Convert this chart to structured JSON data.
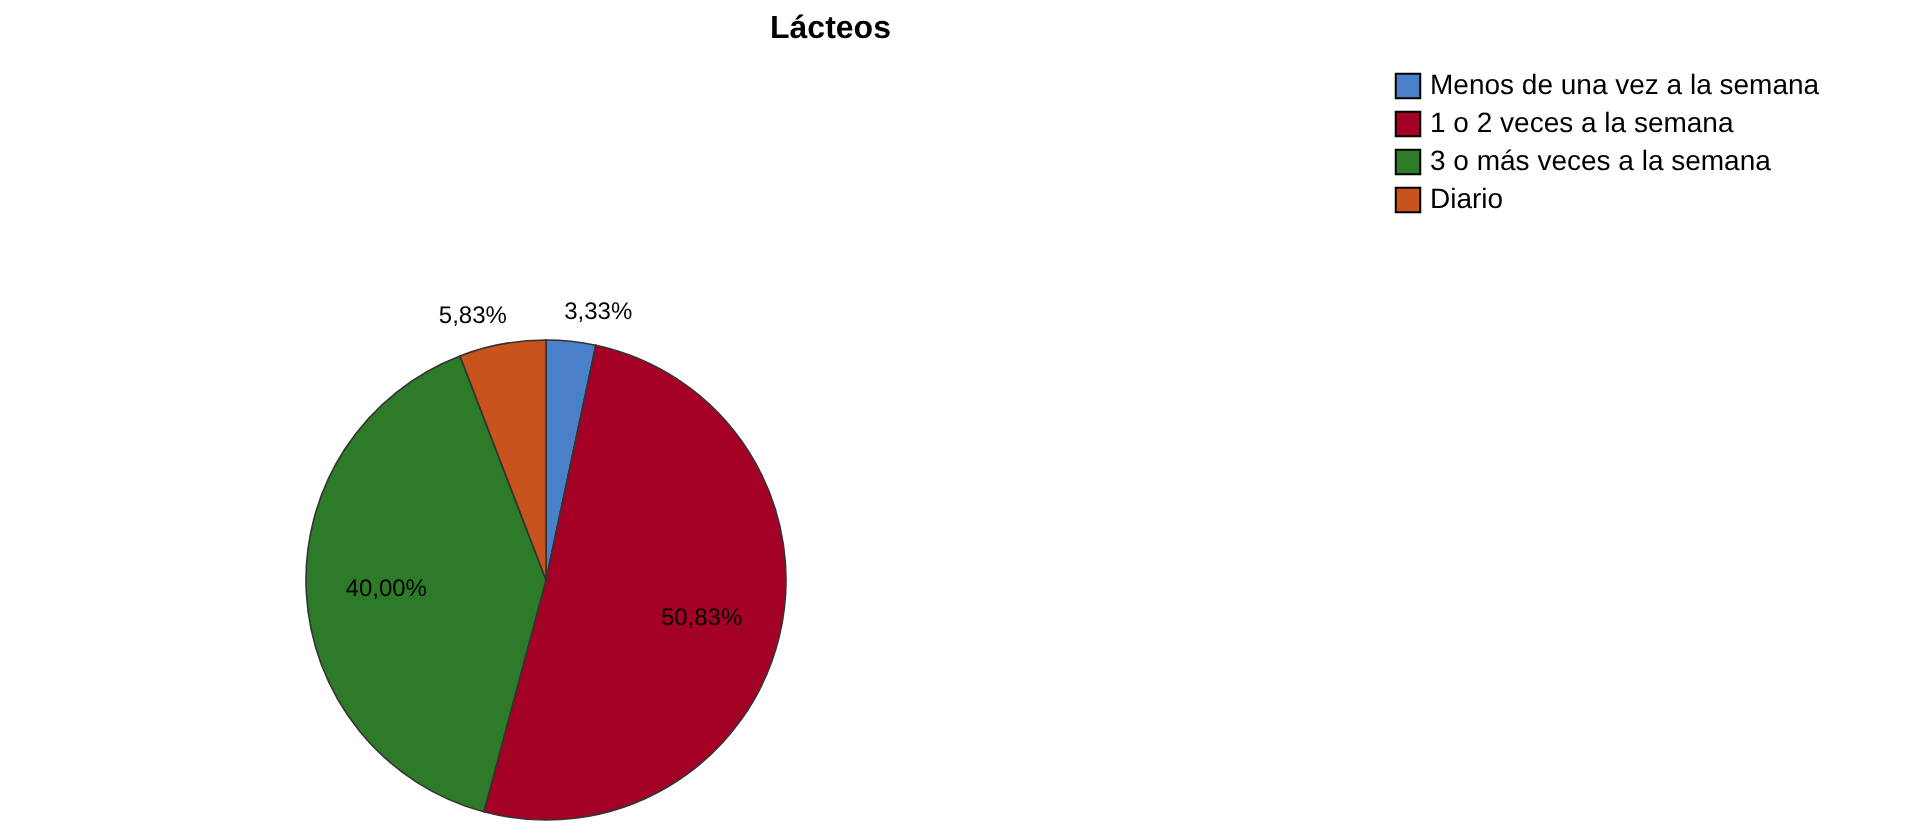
{
  "chart_data": {
    "type": "pie",
    "title": "Lácteos",
    "categories": [
      "Menos de una vez a la semana",
      "1 o 2 veces a la semana",
      "3 o más veces a la semana",
      "Diario"
    ],
    "values": [
      3.33,
      50.83,
      40.0,
      5.83
    ],
    "colors": [
      "#4a7fc9",
      "#a50026",
      "#2d7a28",
      "#c8531c"
    ],
    "value_labels": [
      "3,33%",
      "50,83%",
      "40,00%",
      "5,83%"
    ],
    "legend": "top right"
  }
}
